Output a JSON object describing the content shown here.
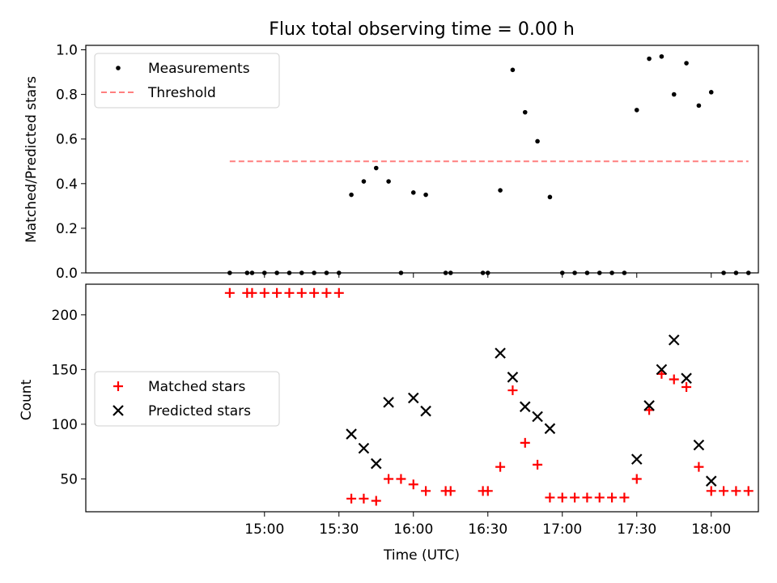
{
  "chart_data": [
    {
      "type": "scatter",
      "title": "Flux total observing time = 0.00 h",
      "xlabel": "",
      "ylabel": "Matched/Predicted stars",
      "ylim": [
        0,
        1.02
      ],
      "yticks": [
        "0.0",
        "0.2",
        "0.4",
        "0.6",
        "0.8",
        "1.0"
      ],
      "x_range_minutes": [
        828,
        1099
      ],
      "legend": {
        "placement": "top-left"
      },
      "series": [
        {
          "name": "Measurements",
          "marker": "dot",
          "color": "#000000",
          "x": [
            "14:46",
            "14:53",
            "14:55",
            "15:00",
            "15:05",
            "15:10",
            "15:15",
            "15:20",
            "15:25",
            "15:30",
            "15:35",
            "15:40",
            "15:45",
            "15:50",
            "15:55",
            "16:00",
            "16:05",
            "16:13",
            "16:15",
            "16:28",
            "16:30",
            "16:35",
            "16:40",
            "16:45",
            "16:50",
            "16:55",
            "17:00",
            "17:05",
            "17:10",
            "17:15",
            "17:20",
            "17:25",
            "17:30",
            "17:35",
            "17:40",
            "17:45",
            "17:50",
            "17:55",
            "18:00",
            "18:05",
            "18:10",
            "18:15"
          ],
          "y": [
            0.0,
            0.0,
            0.0,
            0.0,
            0.0,
            0.0,
            0.0,
            0.0,
            0.0,
            0.0,
            0.35,
            0.41,
            0.47,
            0.41,
            0.0,
            0.36,
            0.35,
            0.0,
            0.0,
            0.0,
            0.0,
            0.37,
            0.91,
            0.72,
            0.59,
            0.34,
            0.0,
            0.0,
            0.0,
            0.0,
            0.0,
            0.0,
            0.73,
            0.96,
            0.97,
            0.8,
            0.94,
            0.75,
            0.81,
            0.0,
            0.0,
            0.0
          ]
        },
        {
          "name": "Threshold",
          "kind": "line",
          "style": "dashed",
          "color": "#ff7f7f",
          "x": [
            "14:46",
            "18:15"
          ],
          "y": [
            0.5,
            0.5
          ]
        }
      ]
    },
    {
      "type": "scatter",
      "title": "",
      "xlabel": "Time (UTC)",
      "ylabel": "Count",
      "ylim": [
        20,
        228
      ],
      "yticks": [
        "50",
        "100",
        "150",
        "200"
      ],
      "x_range_minutes": [
        828,
        1099
      ],
      "xticks": [
        "15:00",
        "15:30",
        "16:00",
        "16:30",
        "17:00",
        "17:30",
        "18:00"
      ],
      "legend": {
        "placement": "center-left"
      },
      "series": [
        {
          "name": "Matched stars",
          "marker": "plus",
          "color": "#ff0000",
          "x": [
            "14:46",
            "14:53",
            "14:55",
            "15:00",
            "15:05",
            "15:10",
            "15:15",
            "15:20",
            "15:25",
            "15:30",
            "15:35",
            "15:40",
            "15:45",
            "15:50",
            "15:55",
            "16:00",
            "16:05",
            "16:13",
            "16:15",
            "16:28",
            "16:30",
            "16:35",
            "16:40",
            "16:45",
            "16:50",
            "16:55",
            "17:00",
            "17:05",
            "17:10",
            "17:15",
            "17:20",
            "17:25",
            "17:30",
            "17:35",
            "17:40",
            "17:45",
            "17:50",
            "17:55",
            "18:00",
            "18:05",
            "18:10",
            "18:15"
          ],
          "y": [
            220,
            220,
            220,
            220,
            220,
            220,
            220,
            220,
            220,
            220,
            32,
            32,
            30,
            50,
            50,
            45,
            39,
            39,
            39,
            39,
            39,
            61,
            131,
            83,
            63,
            33,
            33,
            33,
            33,
            33,
            33,
            33,
            50,
            113,
            146,
            141,
            134,
            61,
            39,
            39,
            39,
            39
          ]
        },
        {
          "name": "Predicted stars",
          "marker": "x",
          "color": "#000000",
          "x": [
            "15:35",
            "15:40",
            "15:45",
            "15:50",
            "16:00",
            "16:05",
            "16:35",
            "16:40",
            "16:45",
            "16:50",
            "16:55",
            "17:30",
            "17:35",
            "17:40",
            "17:45",
            "17:50",
            "17:55",
            "18:00"
          ],
          "y": [
            91,
            78,
            64,
            120,
            124,
            112,
            165,
            143,
            116,
            107,
            96,
            68,
            117,
            150,
            177,
            142,
            81,
            48
          ]
        }
      ]
    }
  ]
}
